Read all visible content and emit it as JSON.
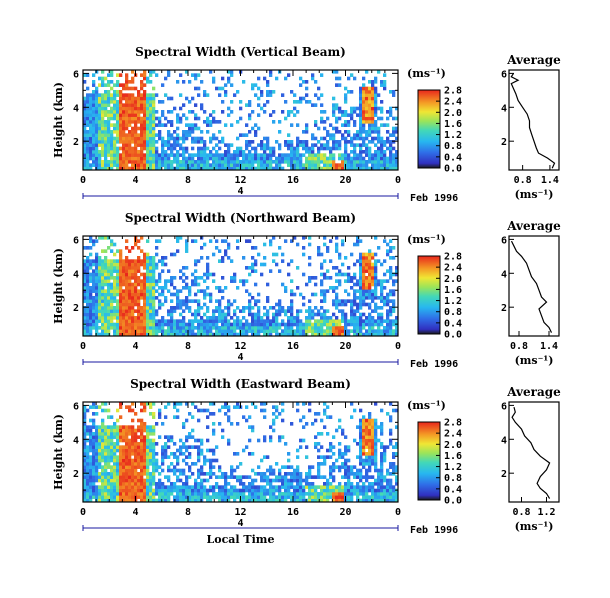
{
  "chart_data": [
    {
      "type": "heatmap",
      "title": "Spectral Width (Vertical Beam)",
      "ylabel": "Height (km)",
      "xlabel": "",
      "x_ticks": [
        "0",
        "4",
        "8",
        "12",
        "16",
        "20",
        "0"
      ],
      "y_ticks": [
        "2",
        "4",
        "6"
      ],
      "xlim": [
        0,
        24
      ],
      "ylim": [
        0.3,
        6.2
      ],
      "date_label": "Feb 1996",
      "day_marker": "4",
      "colorbar": {
        "unit": "(ms⁻¹)",
        "ticks": [
          "0.0",
          "0.4",
          "0.8",
          "1.2",
          "1.6",
          "2.0",
          "2.4",
          "2.8"
        ],
        "range": [
          0,
          2.8
        ]
      },
      "average": {
        "title": "Average",
        "xlabel": "(ms⁻¹)",
        "x_ticks": [
          "0.8",
          "1.4"
        ],
        "xlim": [
          0.5,
          1.6
        ],
        "y_ticks": [
          "2",
          "4",
          "6"
        ],
        "profile": [
          [
            1.45,
            0.4
          ],
          [
            1.5,
            0.7
          ],
          [
            1.35,
            1.0
          ],
          [
            1.15,
            1.3
          ],
          [
            1.1,
            1.6
          ],
          [
            1.05,
            2.0
          ],
          [
            1.0,
            2.4
          ],
          [
            0.95,
            2.8
          ],
          [
            0.95,
            3.2
          ],
          [
            0.9,
            3.6
          ],
          [
            0.8,
            4.0
          ],
          [
            0.7,
            4.4
          ],
          [
            0.65,
            4.8
          ],
          [
            0.6,
            5.1
          ],
          [
            0.55,
            5.4
          ],
          [
            0.7,
            5.6
          ],
          [
            0.55,
            5.8
          ],
          [
            0.6,
            6.0
          ]
        ]
      }
    },
    {
      "type": "heatmap",
      "title": "Spectral Width (Northward Beam)",
      "ylabel": "Height (km)",
      "xlabel": "",
      "x_ticks": [
        "0",
        "4",
        "8",
        "12",
        "16",
        "20",
        "0"
      ],
      "y_ticks": [
        "2",
        "4",
        "6"
      ],
      "xlim": [
        0,
        24
      ],
      "ylim": [
        0.3,
        6.2
      ],
      "date_label": "Feb 1996",
      "day_marker": "4",
      "colorbar": {
        "unit": "(ms⁻¹)",
        "ticks": [
          "0.0",
          "0.4",
          "0.8",
          "1.2",
          "1.6",
          "2.0",
          "2.4",
          "2.8"
        ],
        "range": [
          0,
          2.8
        ]
      },
      "average": {
        "title": "Average",
        "xlabel": "(ms⁻¹)",
        "x_ticks": [
          "0.8",
          "1.4"
        ],
        "xlim": [
          0.6,
          1.6
        ],
        "y_ticks": [
          "2",
          "4",
          "6"
        ],
        "profile": [
          [
            1.45,
            0.5
          ],
          [
            1.4,
            0.8
          ],
          [
            1.3,
            1.1
          ],
          [
            1.25,
            1.5
          ],
          [
            1.2,
            1.9
          ],
          [
            1.35,
            2.3
          ],
          [
            1.25,
            2.6
          ],
          [
            1.2,
            3.0
          ],
          [
            1.15,
            3.4
          ],
          [
            1.05,
            3.8
          ],
          [
            1.0,
            4.2
          ],
          [
            0.95,
            4.6
          ],
          [
            0.85,
            5.0
          ],
          [
            0.75,
            5.3
          ],
          [
            0.7,
            5.6
          ],
          [
            0.65,
            5.9
          ]
        ]
      }
    },
    {
      "type": "heatmap",
      "title": "Spectral Width (Eastward Beam)",
      "ylabel": "Height (km)",
      "xlabel": "Local Time",
      "x_ticks": [
        "0",
        "4",
        "8",
        "12",
        "16",
        "20",
        "0"
      ],
      "y_ticks": [
        "2",
        "4",
        "6"
      ],
      "xlim": [
        0,
        24
      ],
      "ylim": [
        0.3,
        6.2
      ],
      "date_label": "Feb 1996",
      "day_marker": "4",
      "colorbar": {
        "unit": "(ms⁻¹)",
        "ticks": [
          "0.0",
          "0.4",
          "0.8",
          "1.2",
          "1.6",
          "2.0",
          "2.4",
          "2.8"
        ],
        "range": [
          0,
          2.8
        ]
      },
      "average": {
        "title": "Average",
        "xlabel": "(ms⁻¹)",
        "x_ticks": [
          "0.8",
          "1.2"
        ],
        "xlim": [
          0.6,
          1.4
        ],
        "y_ticks": [
          "2",
          "4",
          "6"
        ],
        "profile": [
          [
            1.25,
            0.5
          ],
          [
            1.2,
            0.8
          ],
          [
            1.1,
            1.1
          ],
          [
            1.05,
            1.4
          ],
          [
            1.1,
            1.8
          ],
          [
            1.2,
            2.2
          ],
          [
            1.25,
            2.6
          ],
          [
            1.1,
            3.0
          ],
          [
            1.0,
            3.4
          ],
          [
            0.95,
            3.8
          ],
          [
            0.85,
            4.2
          ],
          [
            0.8,
            4.6
          ],
          [
            0.7,
            5.0
          ],
          [
            0.65,
            5.3
          ],
          [
            0.7,
            5.6
          ],
          [
            0.68,
            5.9
          ]
        ]
      }
    }
  ]
}
